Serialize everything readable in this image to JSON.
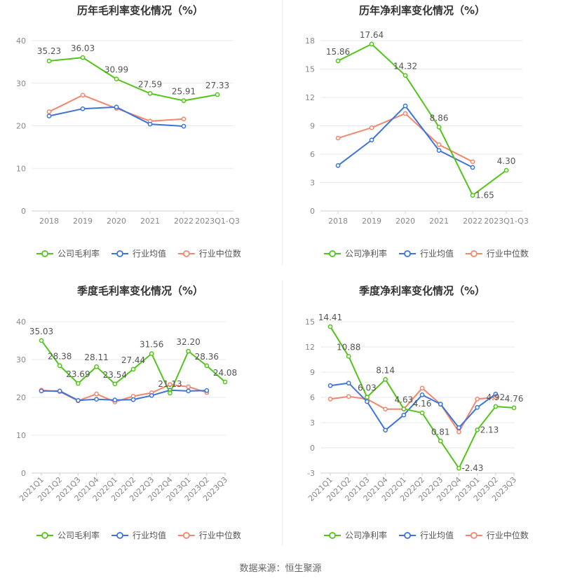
{
  "chart_data": [
    {
      "type": "line",
      "title": "历年毛利率变化情况（%）",
      "categories": [
        "2018",
        "2019",
        "2020",
        "2021",
        "2022",
        "2023Q1-Q3"
      ],
      "ylim": [
        0,
        40
      ],
      "yticks": [
        0,
        10,
        20,
        30,
        40
      ],
      "grid": true,
      "legend_placement": "bottom",
      "rotate_xlabels": false,
      "series": [
        {
          "name": "公司毛利率",
          "color": "#52c41a",
          "labels": true,
          "values": [
            35.23,
            36.03,
            30.99,
            27.59,
            25.91,
            27.33
          ]
        },
        {
          "name": "行业均值",
          "color": "#3d74db",
          "labels": false,
          "values": [
            22.3,
            24.0,
            24.4,
            20.4,
            19.9,
            null
          ]
        },
        {
          "name": "行业中位数",
          "color": "#f4866c",
          "labels": false,
          "values": [
            23.3,
            27.2,
            24.1,
            21.1,
            21.6,
            null
          ]
        }
      ],
      "value_labels": [
        "35.23",
        "36.03",
        "30.99",
        "27.59",
        "25.91",
        "27.33"
      ]
    },
    {
      "type": "line",
      "title": "历年净利率变化情况（%）",
      "categories": [
        "2018",
        "2019",
        "2020",
        "2021",
        "2022",
        "2023Q1-Q3"
      ],
      "ylim": [
        0,
        18
      ],
      "yticks": [
        0,
        3,
        6,
        9,
        12,
        15,
        18
      ],
      "grid": true,
      "legend_placement": "bottom",
      "rotate_xlabels": false,
      "series": [
        {
          "name": "公司净利率",
          "color": "#52c41a",
          "labels": true,
          "values": [
            15.86,
            17.64,
            14.32,
            8.86,
            1.65,
            4.3
          ]
        },
        {
          "name": "行业均值",
          "color": "#3d74db",
          "labels": false,
          "values": [
            4.8,
            7.5,
            11.1,
            6.4,
            4.6,
            null
          ]
        },
        {
          "name": "行业中位数",
          "color": "#f4866c",
          "labels": false,
          "values": [
            7.7,
            8.8,
            10.3,
            7.0,
            5.2,
            null
          ]
        }
      ],
      "value_labels": [
        "15.86",
        "17.64",
        "14.32",
        "8.86",
        "1.65",
        "4.30"
      ]
    },
    {
      "type": "line",
      "title": "季度毛利率变化情况（%）",
      "categories": [
        "2021Q1",
        "2021Q2",
        "2021Q3",
        "2021Q4",
        "2022Q1",
        "2022Q2",
        "2022Q3",
        "2022Q4",
        "2023Q1",
        "2023Q2",
        "2023Q3"
      ],
      "ylim": [
        0,
        40
      ],
      "yticks": [
        0,
        10,
        20,
        30,
        40
      ],
      "grid": true,
      "legend_placement": "bottom",
      "rotate_xlabels": true,
      "series": [
        {
          "name": "公司毛利率",
          "color": "#52c41a",
          "labels": true,
          "values": [
            35.03,
            28.38,
            23.69,
            28.11,
            23.54,
            27.44,
            31.56,
            21.13,
            32.2,
            28.36,
            24.08
          ]
        },
        {
          "name": "行业均值",
          "color": "#3d74db",
          "labels": false,
          "values": [
            21.7,
            21.7,
            19.2,
            19.5,
            19.3,
            19.4,
            20.5,
            21.9,
            21.7,
            21.8,
            null
          ]
        },
        {
          "name": "行业中位数",
          "color": "#f4866c",
          "labels": false,
          "values": [
            21.9,
            21.5,
            19.1,
            20.9,
            18.8,
            20.3,
            21.2,
            23.4,
            22.8,
            21.3,
            null
          ]
        }
      ],
      "value_labels": [
        "35.03",
        "28.38",
        "23.69",
        "28.11",
        "23.54",
        "27.44",
        "31.56",
        "21.13",
        "32.20",
        "28.36",
        "24.08"
      ]
    },
    {
      "type": "line",
      "title": "季度净利率变化情况（%）",
      "categories": [
        "2021Q1",
        "2021Q2",
        "2021Q3",
        "2021Q4",
        "2022Q1",
        "2022Q2",
        "2022Q3",
        "2022Q4",
        "2023Q1",
        "2023Q2",
        "2023Q3"
      ],
      "ylim": [
        -3,
        15
      ],
      "yticks": [
        -3,
        0,
        3,
        6,
        9,
        12,
        15
      ],
      "grid": true,
      "legend_placement": "bottom",
      "rotate_xlabels": true,
      "series": [
        {
          "name": "公司净利率",
          "color": "#52c41a",
          "labels": true,
          "values": [
            14.41,
            10.88,
            6.03,
            8.14,
            4.63,
            4.16,
            0.81,
            -2.43,
            2.13,
            4.92,
            4.76
          ]
        },
        {
          "name": "行业均值",
          "color": "#3d74db",
          "labels": false,
          "values": [
            7.4,
            7.7,
            5.5,
            2.1,
            3.9,
            6.3,
            5.2,
            2.4,
            4.8,
            6.4,
            null
          ]
        },
        {
          "name": "行业中位数",
          "color": "#f4866c",
          "labels": false,
          "values": [
            5.8,
            6.1,
            5.8,
            4.6,
            4.6,
            7.1,
            5.2,
            1.9,
            5.8,
            6.0,
            null
          ]
        }
      ],
      "value_labels": [
        "14.41",
        "10.88",
        "6.03",
        "8.14",
        "4.63",
        "4.16",
        "0.81",
        "-2.43",
        "2.13",
        "4.92",
        "4.76"
      ]
    }
  ],
  "source_text": "数据来源：恒生聚源"
}
